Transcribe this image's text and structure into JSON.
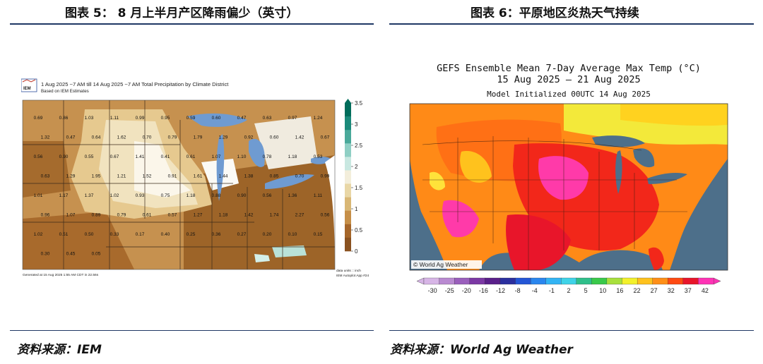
{
  "figures": {
    "left": {
      "title": "图表 5：  8 月上半月产区降雨偏少（英寸）",
      "source": "资料来源：IEM",
      "map": {
        "logo_text": "IEM",
        "title": "1 Aug 2025 ~7 AM till 14 Aug 2025 ~7 AM Total Precipitation by Climate District",
        "subtitle": "Based on IEM Estimates",
        "footer_left": "Generated at 15 Aug 2025 1:55 AM CDT in 22.56s",
        "units": "data units :: inch",
        "app": "IEM Autoplot App #24",
        "colorbar_ticks": [
          "3.5",
          "3",
          "2.5",
          "2",
          "1.5",
          "1",
          "0.5",
          "0"
        ],
        "colorbar_colors": [
          "#006d5b",
          "#1b8a7a",
          "#4aa99a",
          "#8fcfc4",
          "#c9e8e1",
          "#f3eedb",
          "#e9d7a6",
          "#d9b775",
          "#c68f48",
          "#a5662a",
          "#8a5220"
        ],
        "district_values": [
          "0.69",
          "0.86",
          "1.03",
          "1.11",
          "0.99",
          "0.95",
          "0.59",
          "0.60",
          "0.47",
          "0.63",
          "0.97",
          "1.24",
          "1.32",
          "0.47",
          "0.64",
          "1.62",
          "0.70",
          "0.79",
          "1.79",
          "1.29",
          "0.92",
          "0.60",
          "1.42",
          "0.67",
          "0.56",
          "0.90",
          "0.55",
          "0.67",
          "1.41",
          "0.41",
          "0.61",
          "1.07",
          "1.10",
          "0.78",
          "1.18",
          "0.53",
          "0.63",
          "1.29",
          "1.95",
          "1.21",
          "1.52",
          "0.91",
          "1.61",
          "1.44",
          "1.38",
          "0.85",
          "0.70",
          "0.99",
          "1.01",
          "1.17",
          "1.37",
          "1.02",
          "0.93",
          "0.75",
          "1.18",
          "0.88",
          "0.90",
          "0.56",
          "1.36",
          "1.11",
          "0.96",
          "1.07",
          "0.89",
          "0.79",
          "0.61",
          "0.57",
          "1.27",
          "1.18",
          "1.42",
          "1.74",
          "2.27",
          "0.56",
          "1.02",
          "0.51",
          "0.50",
          "0.33",
          "0.17",
          "0.40",
          "0.25",
          "0.36",
          "0.27",
          "0.20",
          "0.10",
          "0.15",
          "0.30",
          "0.45",
          "0.05"
        ]
      }
    },
    "right": {
      "title": "图表 6：平原地区炎热天气持续",
      "source": "资料来源：World Ag Weather",
      "map": {
        "title_line1": "GEFS Ensemble Mean 7-Day Average Max Temp (°C)",
        "title_line2": "15 Aug 2025 – 21 Aug 2025",
        "title_line3": "Model Initialized 00UTC 14 Aug 2025",
        "watermark": "© World Ag Weather",
        "colorbar_labels": [
          "-30",
          "-25",
          "-20",
          "-16",
          "-12",
          "-8",
          "-4",
          "-1",
          "2",
          "5",
          "10",
          "16",
          "22",
          "27",
          "32",
          "37",
          "42"
        ],
        "colorbar_colors": [
          "#d7b5e6",
          "#b98ad1",
          "#9a5fbc",
          "#7b38a4",
          "#5a1f8a",
          "#2b2f9e",
          "#2456d6",
          "#2a86ee",
          "#32b4f4",
          "#3fd3e8",
          "#2fbf8a",
          "#39c94a",
          "#a8e03c",
          "#f3f12b",
          "#ffc21d",
          "#ff8f17",
          "#ff4a12",
          "#e8152a",
          "#ff33b5"
        ]
      }
    }
  }
}
